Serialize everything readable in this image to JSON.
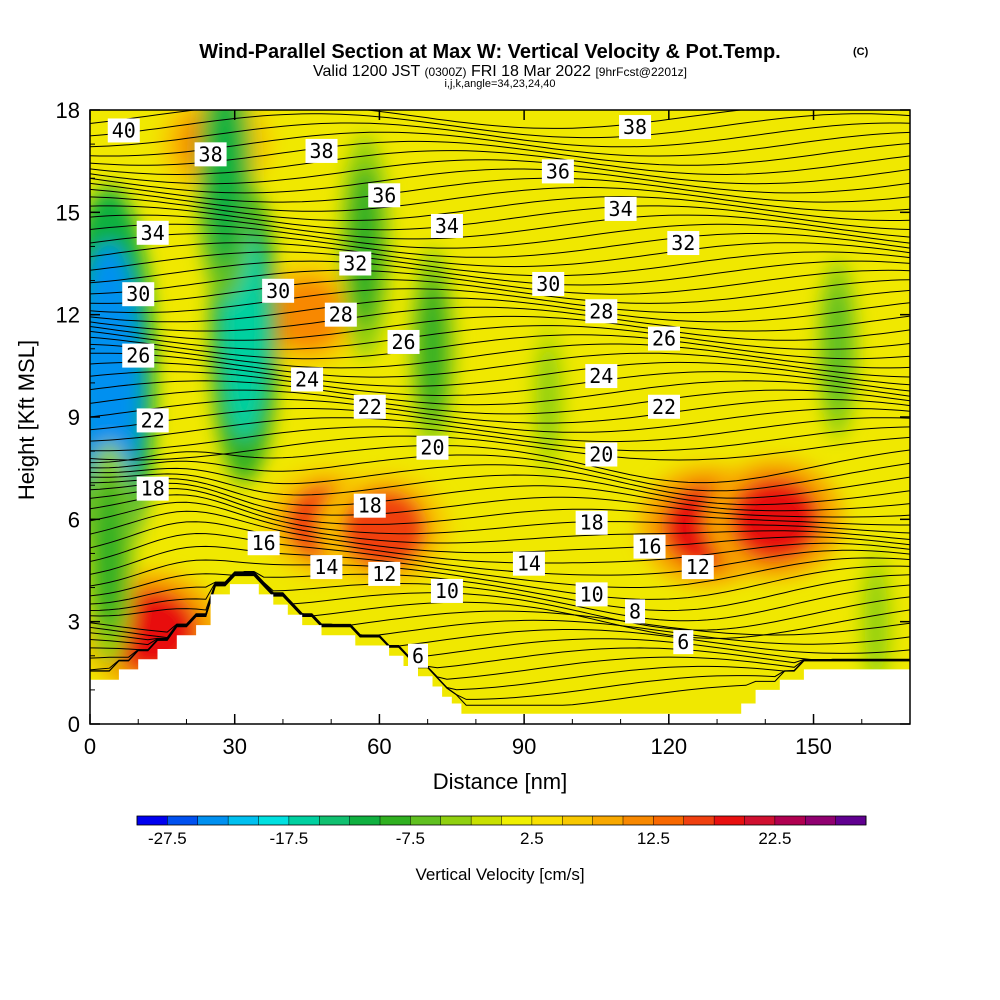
{
  "title": "Wind-Parallel Section at Max W: Vertical Velocity & Pot.Temp.",
  "copyright_mark": "(C)",
  "subtitle_parts": {
    "valid": "Valid 1200 JST",
    "utc": "(0300Z)",
    "date": "FRI 18 Mar 2022",
    "fcst": "[9hrFcst@2201z]"
  },
  "grid_info": "i,j,k,angle=34,23,24,40",
  "chart_data": {
    "type": "heatmap",
    "xlabel": "Distance [nm]",
    "ylabel": "Height [Kft MSL]",
    "xlim": [
      0,
      170
    ],
    "ylim": [
      0,
      18
    ],
    "x_ticks": [
      0,
      30,
      60,
      90,
      120,
      150
    ],
    "y_ticks": [
      0,
      3,
      6,
      9,
      12,
      15,
      18
    ],
    "colorbar": {
      "label": "Vertical Velocity [cm/s]",
      "tick_values": [
        "-27.5",
        "-17.5",
        "-7.5",
        "2.5",
        "12.5",
        "22.5"
      ],
      "colors": [
        "#0000f0",
        "#0050f0",
        "#0090f0",
        "#00c0f0",
        "#00e0e0",
        "#00d0a0",
        "#10c070",
        "#10b040",
        "#30b020",
        "#60c020",
        "#90d010",
        "#c8e000",
        "#f0f000",
        "#f8e000",
        "#f8c800",
        "#f8a800",
        "#f88800",
        "#f86800",
        "#f04010",
        "#e81010",
        "#d01030",
        "#b00050",
        "#900070",
        "#600090"
      ]
    },
    "shading_fields": [
      {
        "kind": "updraft",
        "x": 128,
        "y": 5.8,
        "value": 17.5
      },
      {
        "kind": "updraft",
        "x": 142,
        "y": 6.0,
        "value": 17.5
      },
      {
        "kind": "updraft",
        "x": 49,
        "y": 5.9,
        "value": 15
      },
      {
        "kind": "updraft",
        "x": 61,
        "y": 5.7,
        "value": 16
      },
      {
        "kind": "updraft",
        "x": 13,
        "y": 2.7,
        "value": 17.5
      },
      {
        "kind": "updraft",
        "x": 45,
        "y": 12.0,
        "value": 12
      },
      {
        "kind": "updraft",
        "x": 26,
        "y": 17.0,
        "value": 12
      },
      {
        "kind": "downdraft",
        "x": 4,
        "y": 10.0,
        "value": -25
      },
      {
        "kind": "downdraft",
        "x": 32,
        "y": 11.5,
        "value": -17
      },
      {
        "kind": "downdraft",
        "x": 28,
        "y": 16.0,
        "value": -12
      },
      {
        "kind": "downdraft",
        "x": 57,
        "y": 14.0,
        "value": -10
      },
      {
        "kind": "downdraft",
        "x": 71,
        "y": 11.0,
        "value": -8
      },
      {
        "kind": "downdraft",
        "x": 95,
        "y": 9.5,
        "value": -4
      },
      {
        "kind": "downdraft",
        "x": 155,
        "y": 11.0,
        "value": -6
      },
      {
        "kind": "downdraft",
        "x": 163,
        "y": 3.0,
        "value": -4
      },
      {
        "kind": "downdraft",
        "x": 4,
        "y": 5.0,
        "value": -10
      }
    ],
    "terrain_kft": [
      [
        0,
        1.3
      ],
      [
        6,
        1.3
      ],
      [
        6,
        1.6
      ],
      [
        10,
        1.6
      ],
      [
        10,
        1.9
      ],
      [
        14,
        1.9
      ],
      [
        14,
        2.2
      ],
      [
        18,
        2.2
      ],
      [
        18,
        2.6
      ],
      [
        22,
        2.6
      ],
      [
        22,
        2.9
      ],
      [
        25,
        2.9
      ],
      [
        25,
        3.8
      ],
      [
        29,
        3.8
      ],
      [
        29,
        4.1
      ],
      [
        35,
        4.1
      ],
      [
        35,
        3.8
      ],
      [
        38,
        3.8
      ],
      [
        38,
        3.5
      ],
      [
        41,
        3.5
      ],
      [
        41,
        3.2
      ],
      [
        44,
        3.2
      ],
      [
        44,
        2.9
      ],
      [
        48,
        2.9
      ],
      [
        48,
        2.6
      ],
      [
        55,
        2.6
      ],
      [
        55,
        2.3
      ],
      [
        62,
        2.3
      ],
      [
        62,
        2.0
      ],
      [
        65,
        2.0
      ],
      [
        65,
        1.7
      ],
      [
        68,
        1.7
      ],
      [
        68,
        1.4
      ],
      [
        71,
        1.4
      ],
      [
        71,
        1.1
      ],
      [
        73,
        1.1
      ],
      [
        73,
        0.8
      ],
      [
        75,
        0.8
      ],
      [
        75,
        0.6
      ],
      [
        77,
        0.6
      ],
      [
        77,
        0.3
      ],
      [
        135,
        0.3
      ],
      [
        135,
        0.6
      ],
      [
        138,
        0.6
      ],
      [
        138,
        1.0
      ],
      [
        143,
        1.0
      ],
      [
        143,
        1.3
      ],
      [
        148,
        1.3
      ],
      [
        148,
        1.6
      ],
      [
        170,
        1.6
      ]
    ],
    "isentrope_labels": [
      {
        "v": "40",
        "x": 7,
        "y": 17.4
      },
      {
        "v": "38",
        "x": 25,
        "y": 16.7
      },
      {
        "v": "38",
        "x": 48,
        "y": 16.8
      },
      {
        "v": "38",
        "x": 113,
        "y": 17.5
      },
      {
        "v": "36",
        "x": 61,
        "y": 15.5
      },
      {
        "v": "36",
        "x": 97,
        "y": 16.2
      },
      {
        "v": "34",
        "x": 13,
        "y": 14.4
      },
      {
        "v": "34",
        "x": 74,
        "y": 14.6
      },
      {
        "v": "34",
        "x": 110,
        "y": 15.1
      },
      {
        "v": "32",
        "x": 55,
        "y": 13.5
      },
      {
        "v": "32",
        "x": 123,
        "y": 14.1
      },
      {
        "v": "30",
        "x": 10,
        "y": 12.6
      },
      {
        "v": "30",
        "x": 39,
        "y": 12.7
      },
      {
        "v": "30",
        "x": 95,
        "y": 12.9
      },
      {
        "v": "28",
        "x": 52,
        "y": 12.0
      },
      {
        "v": "28",
        "x": 106,
        "y": 12.1
      },
      {
        "v": "26",
        "x": 10,
        "y": 10.8
      },
      {
        "v": "26",
        "x": 65,
        "y": 11.2
      },
      {
        "v": "26",
        "x": 119,
        "y": 11.3
      },
      {
        "v": "24",
        "x": 45,
        "y": 10.1
      },
      {
        "v": "24",
        "x": 106,
        "y": 10.2
      },
      {
        "v": "22",
        "x": 13,
        "y": 8.9
      },
      {
        "v": "22",
        "x": 58,
        "y": 9.3
      },
      {
        "v": "22",
        "x": 119,
        "y": 9.3
      },
      {
        "v": "20",
        "x": 71,
        "y": 8.1
      },
      {
        "v": "20",
        "x": 106,
        "y": 7.9
      },
      {
        "v": "18",
        "x": 13,
        "y": 6.9
      },
      {
        "v": "18",
        "x": 58,
        "y": 6.4
      },
      {
        "v": "18",
        "x": 104,
        "y": 5.9
      },
      {
        "v": "16",
        "x": 36,
        "y": 5.3
      },
      {
        "v": "16",
        "x": 116,
        "y": 5.2
      },
      {
        "v": "14",
        "x": 49,
        "y": 4.6
      },
      {
        "v": "14",
        "x": 91,
        "y": 4.7
      },
      {
        "v": "12",
        "x": 61,
        "y": 4.4
      },
      {
        "v": "12",
        "x": 126,
        "y": 4.6
      },
      {
        "v": "10",
        "x": 74,
        "y": 3.9
      },
      {
        "v": "10",
        "x": 104,
        "y": 3.8
      },
      {
        "v": "8",
        "x": 113,
        "y": 3.3
      },
      {
        "v": "6",
        "x": 68,
        "y": 2.0
      },
      {
        "v": "6",
        "x": 123,
        "y": 2.4
      }
    ]
  }
}
